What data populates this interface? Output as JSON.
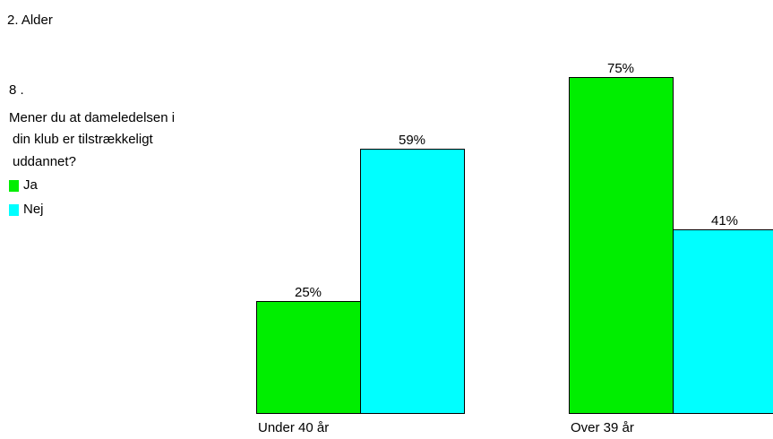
{
  "title": "2. Alder",
  "question": {
    "number": "8 .",
    "lines": [
      "Mener du at dameledelsen i",
      "din klub er tilstrækkeligt",
      "uddannet?"
    ]
  },
  "chart_data": {
    "type": "bar",
    "categories": [
      "Under 40 år",
      "Over 39 år"
    ],
    "series": [
      {
        "name": "Ja",
        "values": [
          25,
          75
        ],
        "labels": [
          "25%",
          "75%"
        ],
        "color": "#00ee00"
      },
      {
        "name": "Nej",
        "values": [
          59,
          41
        ],
        "labels": [
          "59%",
          "41%"
        ],
        "color": "#00ffff"
      }
    ],
    "ylim": [
      0,
      80
    ],
    "legend": "left",
    "grid": false
  }
}
